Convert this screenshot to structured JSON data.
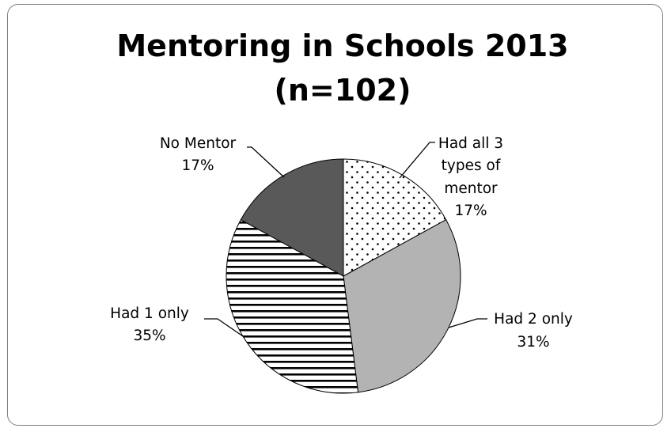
{
  "chart_data": {
    "type": "pie",
    "title": "Mentoring in Schools 2013",
    "subtitle": "(n=102)",
    "slices": [
      {
        "label_lines": [
          "Had all 3",
          "types of",
          "mentor"
        ],
        "value": 17,
        "value_text": "17%",
        "pattern": "dots",
        "fill": "#ffffff"
      },
      {
        "label_lines": [
          "Had 2 only"
        ],
        "value": 31,
        "value_text": "31%",
        "pattern": "solid",
        "fill": "#b3b3b3"
      },
      {
        "label_lines": [
          "Had 1 only"
        ],
        "value": 35,
        "value_text": "35%",
        "pattern": "hstripes",
        "fill": "#ffffff"
      },
      {
        "label_lines": [
          "No Mentor"
        ],
        "value": 17,
        "value_text": "17%",
        "pattern": "solid",
        "fill": "#595959"
      }
    ],
    "start_angle": "12 o'clock",
    "direction": "clockwise",
    "legend": "none"
  }
}
